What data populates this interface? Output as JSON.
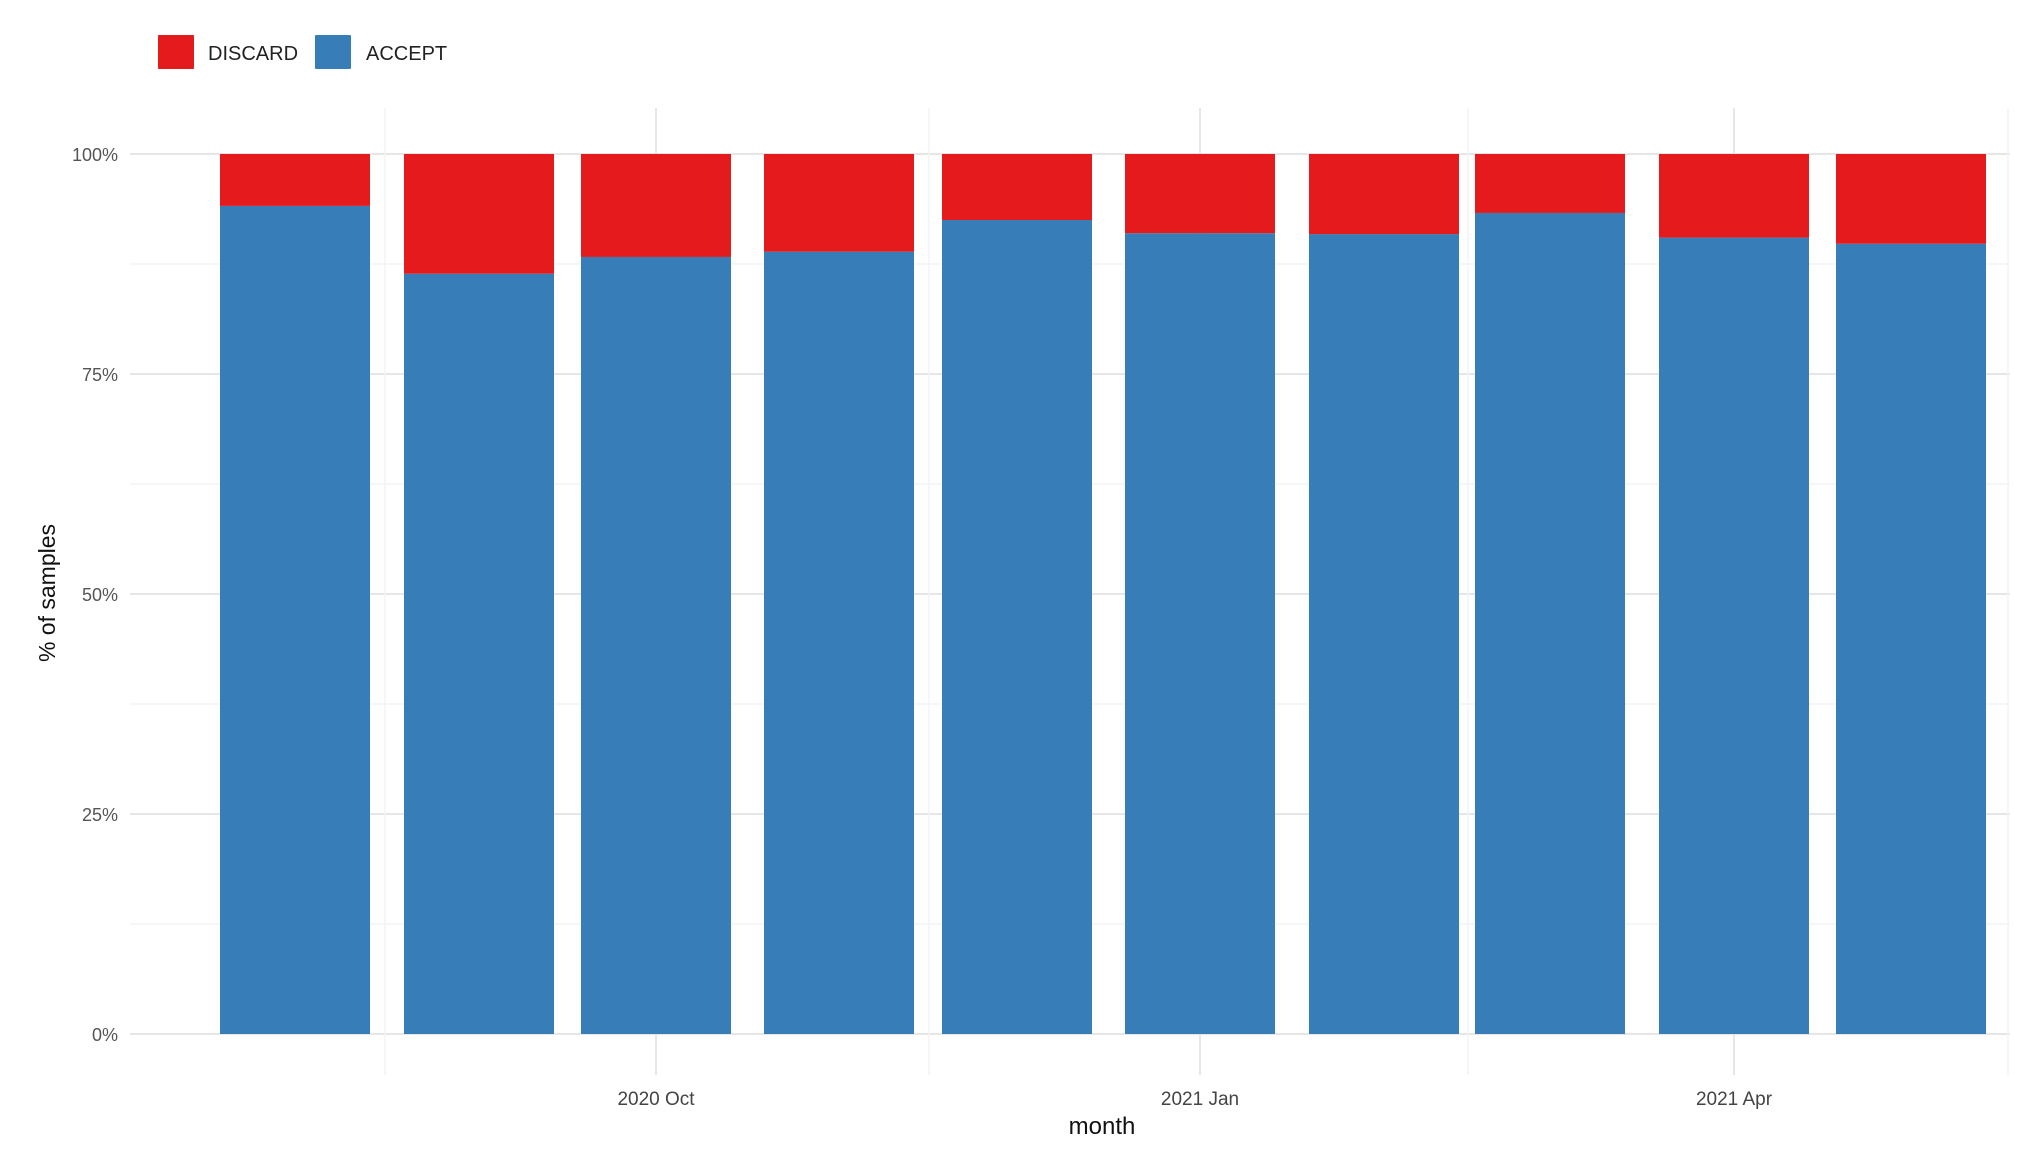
{
  "chart_data": {
    "type": "bar",
    "stacked": true,
    "percent_stacked": true,
    "x": [
      "2020 Aug",
      "2020 Sep",
      "2020 Oct",
      "2020 Nov",
      "2020 Dec",
      "2021 Jan",
      "2021 Feb",
      "2021 Mar",
      "2021 Apr",
      "2021 May"
    ],
    "series": [
      {
        "name": "ACCEPT",
        "color": "#377EB8",
        "values": [
          94.1,
          86.4,
          88.3,
          88.9,
          92.5,
          91.0,
          90.9,
          93.3,
          90.5,
          89.8
        ]
      },
      {
        "name": "DISCARD",
        "color": "#E41A1C",
        "values": [
          5.9,
          13.6,
          11.7,
          11.1,
          7.5,
          9.0,
          9.1,
          6.7,
          9.5,
          10.2
        ]
      }
    ],
    "legend": {
      "position": "top-left",
      "order": [
        "DISCARD",
        "ACCEPT"
      ]
    },
    "xlabel": "month",
    "ylabel": "% of samples",
    "y_ticks": [
      "0%",
      "25%",
      "50%",
      "75%",
      "100%"
    ],
    "y_tick_values": [
      0,
      25,
      50,
      75,
      100
    ],
    "x_ticks": [
      {
        "label": "2020 Oct",
        "value": "2020-10-01"
      },
      {
        "label": "2021 Jan",
        "value": "2021-01-01"
      },
      {
        "label": "2021 Apr",
        "value": "2021-04-01"
      }
    ],
    "ylim": [
      0,
      100
    ],
    "grid": true
  }
}
